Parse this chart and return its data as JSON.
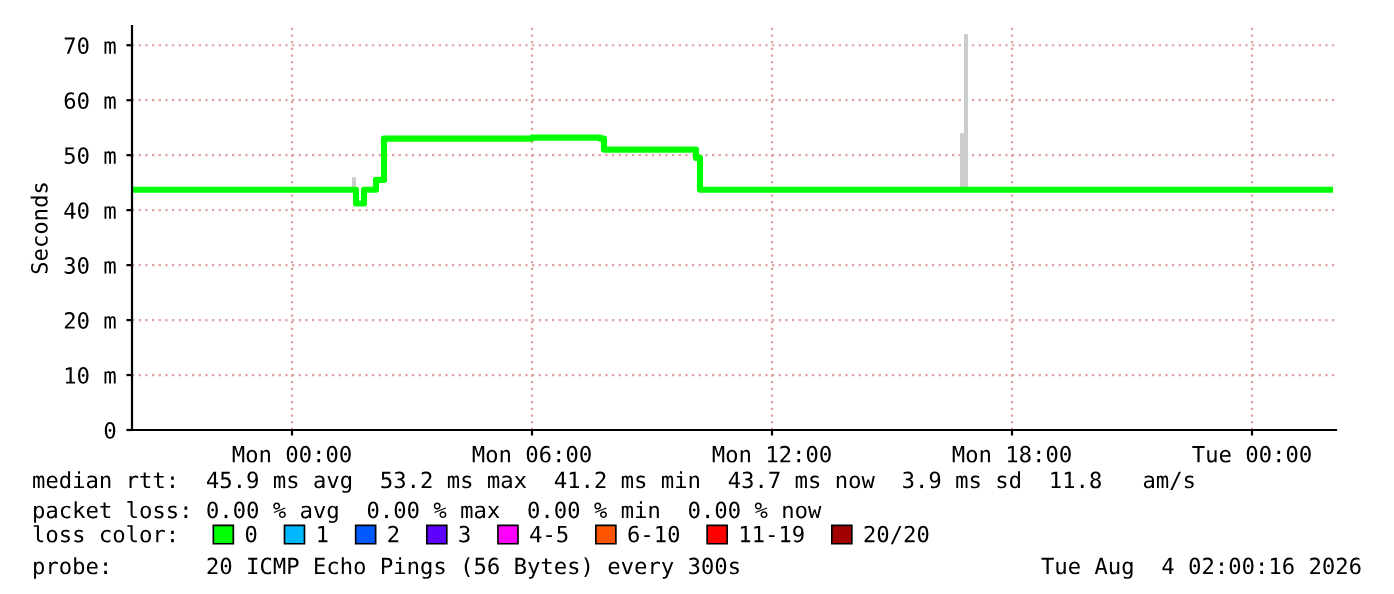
{
  "chart_data": {
    "type": "step",
    "ylabel": "Seconds",
    "x": [
      "2026-08-02T20:00",
      "2026-08-03T01:30",
      "2026-08-03T01:36",
      "2026-08-03T01:48",
      "2026-08-03T02:06",
      "2026-08-03T02:18",
      "2026-08-03T04:00",
      "2026-08-03T06:00",
      "2026-08-03T07:42",
      "2026-08-03T07:48",
      "2026-08-03T10:00",
      "2026-08-03T10:06",
      "2026-08-03T10:12",
      "2026-08-03T16:42",
      "2026-08-03T16:48",
      "2026-08-03T16:54",
      "2026-08-03T17:00",
      "2026-08-04T01:57"
    ],
    "series": [
      {
        "name": "0",
        "color": "#00ff00",
        "values": [
          43.7,
          43.7,
          41.2,
          43.7,
          45.5,
          53.0,
          53.0,
          53.2,
          53.0,
          51.0,
          51.0,
          49.5,
          43.7,
          43.7,
          43.7,
          43.7,
          43.7,
          43.7
        ],
        "lower": [
          43.7,
          43.7,
          41.2,
          43.7,
          45.5,
          53.0,
          53.0,
          53.2,
          53.0,
          51.0,
          51.0,
          49.5,
          43.7,
          43.7,
          43.7,
          43.7,
          43.7,
          43.7
        ],
        "upper": [
          43.7,
          46,
          41.2,
          43.7,
          45.5,
          53.0,
          53.0,
          53.2,
          53.0,
          51.0,
          51.0,
          49.5,
          43.7,
          54,
          72,
          43.7,
          43.7,
          43.7
        ]
      },
      {
        "name": "1",
        "color": "#00b8ff",
        "values": [
          null,
          null,
          null,
          null,
          null,
          null,
          null,
          null,
          null,
          null,
          null,
          null,
          null,
          null,
          null,
          null,
          null,
          null
        ]
      },
      {
        "name": "2",
        "color": "#0059ff",
        "values": [
          null,
          null,
          null,
          null,
          null,
          null,
          null,
          null,
          null,
          null,
          null,
          null,
          null,
          null,
          null,
          null,
          null,
          null
        ]
      },
      {
        "name": "3",
        "color": "#5e00ff",
        "values": [
          null,
          null,
          null,
          null,
          null,
          null,
          null,
          null,
          null,
          null,
          null,
          null,
          null,
          null,
          null,
          null,
          null,
          null
        ]
      },
      {
        "name": "4-5",
        "color": "#ff00ff",
        "values": [
          null,
          null,
          null,
          null,
          null,
          null,
          null,
          null,
          null,
          null,
          null,
          null,
          null,
          null,
          null,
          null,
          null,
          null
        ]
      },
      {
        "name": "6-10",
        "color": "#ff5500",
        "values": [
          null,
          null,
          null,
          null,
          null,
          null,
          null,
          null,
          null,
          null,
          null,
          null,
          null,
          null,
          null,
          null,
          null,
          null
        ]
      },
      {
        "name": "11-19",
        "color": "#ff0000",
        "values": [
          null,
          null,
          null,
          null,
          null,
          null,
          null,
          null,
          null,
          null,
          null,
          null,
          null,
          null,
          null,
          null,
          null,
          null
        ]
      },
      {
        "name": "20/20",
        "color": "#a10000",
        "values": [
          null,
          null,
          null,
          null,
          null,
          null,
          null,
          null,
          null,
          null,
          null,
          null,
          null,
          null,
          null,
          null,
          null,
          null
        ]
      }
    ],
    "legend_title": "loss color:",
    "legend": "bottom",
    "xlim": [
      "2026-08-02T20:00",
      "2026-08-04T02:06"
    ],
    "xticks": [
      {
        "value": "2026-08-03T00:00",
        "label": "Mon 00:00"
      },
      {
        "value": "2026-08-03T06:00",
        "label": "Mon 06:00"
      },
      {
        "value": "2026-08-03T12:00",
        "label": "Mon 12:00"
      },
      {
        "value": "2026-08-03T18:00",
        "label": "Mon 18:00"
      },
      {
        "value": "2026-08-04T00:00",
        "label": "Tue 00:00"
      }
    ],
    "ylim": [
      0,
      73.5
    ],
    "yticks": [
      0,
      {
        "value": 10,
        "label": "10 m"
      },
      {
        "value": 20,
        "label": "20 m"
      },
      {
        "value": 30,
        "label": "30 m"
      },
      {
        "value": 40,
        "label": "40 m"
      },
      {
        "value": 50,
        "label": "50 m"
      },
      {
        "value": 60,
        "label": "60 m"
      },
      {
        "value": 70,
        "label": "70 m"
      }
    ],
    "grid": true,
    "annotations": [
      "median rtt:  45.9 ms avg  53.2 ms max  41.2 ms min  43.7 ms now  3.9 ms sd  11.8   am/s",
      "packet loss: 0.00 % avg  0.00 % max  0.00 % min  0.00 % now",
      "probe:       20 ICMP Echo Pings (56 Bytes) every 300s",
      "Tue Aug  4 02:00:16 2026"
    ]
  }
}
